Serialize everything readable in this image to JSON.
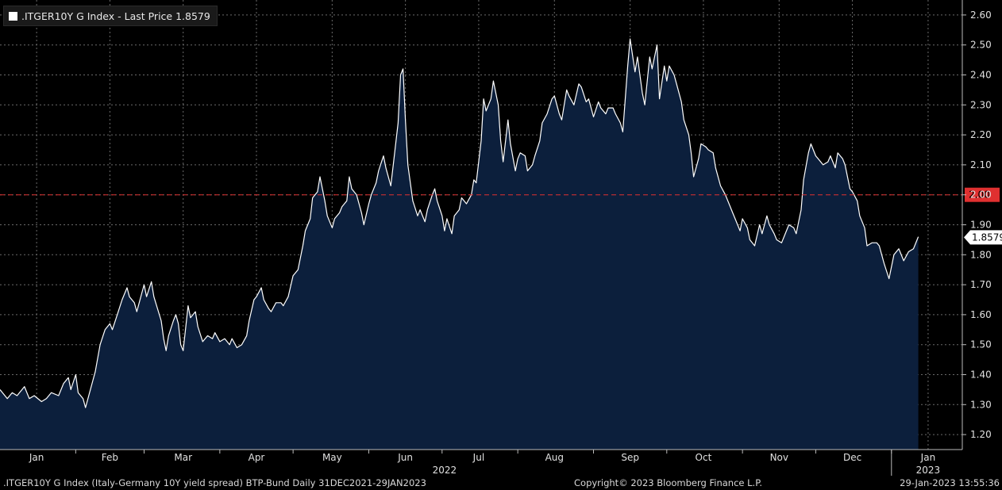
{
  "legend": {
    "label": ".ITGER10Y G Index - Last Price 1.8579",
    "swatch_color": "#ffffff"
  },
  "footer": {
    "left": ".ITGER10Y G Index (Italy-Germany 10Y yield spread) BTP-Bund  Daily 31DEC2021-29JAN2023",
    "center": "Copyright© 2023 Bloomberg Finance L.P.",
    "right": "29-Jan-2023 13:55:36"
  },
  "colors": {
    "background": "#000000",
    "line": "#ffffff",
    "fill": "#0c1f3c",
    "grid": "#6a6a6a",
    "reference": "#e03030",
    "last_price_tag": "#ffffff",
    "reference_tag": "#e03030"
  },
  "chart_data": {
    "type": "area",
    "title": ".ITGER10Y G Index - Last Price 1.8579",
    "xlabel": "",
    "ylabel": "",
    "ylim": [
      1.15,
      2.65
    ],
    "yticks": [
      "1.20",
      "1.30",
      "1.40",
      "1.50",
      "1.60",
      "1.70",
      "1.80",
      "1.90",
      "2.00",
      "2.10",
      "2.20",
      "2.30",
      "2.40",
      "2.50",
      "2.60"
    ],
    "xlim": [
      "2021-12-31",
      "2023-01-29"
    ],
    "x_ticks": [
      {
        "label": "Jan",
        "date": "2022-01-15"
      },
      {
        "label": "Feb",
        "date": "2022-02-14"
      },
      {
        "label": "Mar",
        "date": "2022-03-16"
      },
      {
        "label": "Apr",
        "date": "2022-04-15"
      },
      {
        "label": "May",
        "date": "2022-05-16"
      },
      {
        "label": "Jun",
        "date": "2022-06-15"
      },
      {
        "label": "Jul",
        "date": "2022-07-15"
      },
      {
        "label": "Aug",
        "date": "2022-08-15"
      },
      {
        "label": "Sep",
        "date": "2022-09-15"
      },
      {
        "label": "Oct",
        "date": "2022-10-15"
      },
      {
        "label": "Nov",
        "date": "2022-11-15"
      },
      {
        "label": "Dec",
        "date": "2022-12-15"
      },
      {
        "label": "Jan",
        "date": "2023-01-15"
      }
    ],
    "year_labels": [
      {
        "label": "2022",
        "date": "2022-07-01"
      },
      {
        "label": "2023",
        "date": "2023-01-15"
      }
    ],
    "year_divider": "2022-12-31",
    "month_separators": [
      "2022-01-31",
      "2022-02-28",
      "2022-03-31",
      "2022-04-30",
      "2022-05-31",
      "2022-06-30",
      "2022-07-31",
      "2022-08-31",
      "2022-09-30",
      "2022-10-31",
      "2022-11-30",
      "2022-12-31"
    ],
    "gridlines": true,
    "reference_line": {
      "value": 2.0,
      "label": "2.00"
    },
    "last_price": {
      "value": 1.8579,
      "label": "1.8579"
    },
    "series": [
      {
        "points": [
          [
            "2021-12-31",
            1.35
          ],
          [
            "2022-01-03",
            1.32
          ],
          [
            "2022-01-05",
            1.34
          ],
          [
            "2022-01-07",
            1.33
          ],
          [
            "2022-01-10",
            1.36
          ],
          [
            "2022-01-12",
            1.32
          ],
          [
            "2022-01-14",
            1.33
          ],
          [
            "2022-01-17",
            1.31
          ],
          [
            "2022-01-19",
            1.32
          ],
          [
            "2022-01-21",
            1.34
          ],
          [
            "2022-01-24",
            1.33
          ],
          [
            "2022-01-26",
            1.37
          ],
          [
            "2022-01-28",
            1.39
          ],
          [
            "2022-01-29",
            1.35
          ],
          [
            "2022-01-31",
            1.4
          ],
          [
            "2022-02-01",
            1.34
          ],
          [
            "2022-02-03",
            1.32
          ],
          [
            "2022-02-04",
            1.29
          ],
          [
            "2022-02-07",
            1.38
          ],
          [
            "2022-02-08",
            1.41
          ],
          [
            "2022-02-10",
            1.5
          ],
          [
            "2022-02-12",
            1.55
          ],
          [
            "2022-02-14",
            1.57
          ],
          [
            "2022-02-15",
            1.55
          ],
          [
            "2022-02-17",
            1.6
          ],
          [
            "2022-02-19",
            1.65
          ],
          [
            "2022-02-21",
            1.69
          ],
          [
            "2022-02-22",
            1.66
          ],
          [
            "2022-02-24",
            1.64
          ],
          [
            "2022-02-25",
            1.61
          ],
          [
            "2022-02-27",
            1.67
          ],
          [
            "2022-02-28",
            1.7
          ],
          [
            "2022-03-01",
            1.66
          ],
          [
            "2022-03-03",
            1.71
          ],
          [
            "2022-03-04",
            1.66
          ],
          [
            "2022-03-07",
            1.58
          ],
          [
            "2022-03-08",
            1.52
          ],
          [
            "2022-03-09",
            1.48
          ],
          [
            "2022-03-10",
            1.53
          ],
          [
            "2022-03-12",
            1.58
          ],
          [
            "2022-03-13",
            1.6
          ],
          [
            "2022-03-14",
            1.57
          ],
          [
            "2022-03-15",
            1.5
          ],
          [
            "2022-03-16",
            1.48
          ],
          [
            "2022-03-18",
            1.63
          ],
          [
            "2022-03-19",
            1.59
          ],
          [
            "2022-03-21",
            1.61
          ],
          [
            "2022-03-22",
            1.56
          ],
          [
            "2022-03-24",
            1.51
          ],
          [
            "2022-03-26",
            1.53
          ],
          [
            "2022-03-28",
            1.52
          ],
          [
            "2022-03-29",
            1.54
          ],
          [
            "2022-03-31",
            1.51
          ],
          [
            "2022-04-02",
            1.52
          ],
          [
            "2022-04-04",
            1.5
          ],
          [
            "2022-04-05",
            1.52
          ],
          [
            "2022-04-07",
            1.49
          ],
          [
            "2022-04-09",
            1.5
          ],
          [
            "2022-04-11",
            1.53
          ],
          [
            "2022-04-12",
            1.58
          ],
          [
            "2022-04-14",
            1.65
          ],
          [
            "2022-04-15",
            1.66
          ],
          [
            "2022-04-17",
            1.69
          ],
          [
            "2022-04-18",
            1.65
          ],
          [
            "2022-04-20",
            1.62
          ],
          [
            "2022-04-21",
            1.61
          ],
          [
            "2022-04-23",
            1.64
          ],
          [
            "2022-04-25",
            1.64
          ],
          [
            "2022-04-26",
            1.63
          ],
          [
            "2022-04-28",
            1.66
          ],
          [
            "2022-04-30",
            1.73
          ],
          [
            "2022-05-02",
            1.75
          ],
          [
            "2022-05-04",
            1.83
          ],
          [
            "2022-05-05",
            1.88
          ],
          [
            "2022-05-07",
            1.92
          ],
          [
            "2022-05-08",
            1.99
          ],
          [
            "2022-05-10",
            2.01
          ],
          [
            "2022-05-11",
            2.06
          ],
          [
            "2022-05-13",
            1.98
          ],
          [
            "2022-05-14",
            1.93
          ],
          [
            "2022-05-16",
            1.89
          ],
          [
            "2022-05-17",
            1.92
          ],
          [
            "2022-05-19",
            1.94
          ],
          [
            "2022-05-20",
            1.96
          ],
          [
            "2022-05-22",
            1.98
          ],
          [
            "2022-05-23",
            2.06
          ],
          [
            "2022-05-24",
            2.02
          ],
          [
            "2022-05-26",
            2.0
          ],
          [
            "2022-05-28",
            1.94
          ],
          [
            "2022-05-29",
            1.9
          ],
          [
            "2022-05-31",
            1.97
          ],
          [
            "2022-06-01",
            2.0
          ],
          [
            "2022-06-03",
            2.04
          ],
          [
            "2022-06-04",
            2.08
          ],
          [
            "2022-06-06",
            2.13
          ],
          [
            "2022-06-07",
            2.09
          ],
          [
            "2022-06-09",
            2.03
          ],
          [
            "2022-06-10",
            2.1
          ],
          [
            "2022-06-12",
            2.24
          ],
          [
            "2022-06-13",
            2.4
          ],
          [
            "2022-06-14",
            2.42
          ],
          [
            "2022-06-15",
            2.25
          ],
          [
            "2022-06-16",
            2.1
          ],
          [
            "2022-06-18",
            1.98
          ],
          [
            "2022-06-20",
            1.93
          ],
          [
            "2022-06-21",
            1.95
          ],
          [
            "2022-06-23",
            1.91
          ],
          [
            "2022-06-24",
            1.95
          ],
          [
            "2022-06-26",
            2.0
          ],
          [
            "2022-06-27",
            2.02
          ],
          [
            "2022-06-28",
            1.98
          ],
          [
            "2022-06-30",
            1.93
          ],
          [
            "2022-07-01",
            1.88
          ],
          [
            "2022-07-02",
            1.92
          ],
          [
            "2022-07-04",
            1.87
          ],
          [
            "2022-07-05",
            1.93
          ],
          [
            "2022-07-07",
            1.95
          ],
          [
            "2022-07-08",
            1.99
          ],
          [
            "2022-07-10",
            1.97
          ],
          [
            "2022-07-12",
            2.0
          ],
          [
            "2022-07-13",
            2.05
          ],
          [
            "2022-07-14",
            2.04
          ],
          [
            "2022-07-16",
            2.18
          ],
          [
            "2022-07-17",
            2.32
          ],
          [
            "2022-07-18",
            2.28
          ],
          [
            "2022-07-20",
            2.32
          ],
          [
            "2022-07-21",
            2.38
          ],
          [
            "2022-07-23",
            2.3
          ],
          [
            "2022-07-24",
            2.18
          ],
          [
            "2022-07-25",
            2.11
          ],
          [
            "2022-07-27",
            2.25
          ],
          [
            "2022-07-28",
            2.17
          ],
          [
            "2022-07-30",
            2.08
          ],
          [
            "2022-07-31",
            2.12
          ],
          [
            "2022-08-01",
            2.14
          ],
          [
            "2022-08-03",
            2.13
          ],
          [
            "2022-08-04",
            2.08
          ],
          [
            "2022-08-06",
            2.1
          ],
          [
            "2022-08-07",
            2.13
          ],
          [
            "2022-08-09",
            2.18
          ],
          [
            "2022-08-10",
            2.24
          ],
          [
            "2022-08-12",
            2.27
          ],
          [
            "2022-08-14",
            2.32
          ],
          [
            "2022-08-15",
            2.33
          ],
          [
            "2022-08-17",
            2.27
          ],
          [
            "2022-08-18",
            2.25
          ],
          [
            "2022-08-20",
            2.35
          ],
          [
            "2022-08-21",
            2.33
          ],
          [
            "2022-08-23",
            2.3
          ],
          [
            "2022-08-25",
            2.37
          ],
          [
            "2022-08-26",
            2.36
          ],
          [
            "2022-08-28",
            2.31
          ],
          [
            "2022-08-29",
            2.32
          ],
          [
            "2022-08-31",
            2.26
          ],
          [
            "2022-09-02",
            2.31
          ],
          [
            "2022-09-03",
            2.29
          ],
          [
            "2022-09-05",
            2.27
          ],
          [
            "2022-09-06",
            2.29
          ],
          [
            "2022-09-08",
            2.29
          ],
          [
            "2022-09-09",
            2.27
          ],
          [
            "2022-09-11",
            2.24
          ],
          [
            "2022-09-12",
            2.21
          ],
          [
            "2022-09-14",
            2.43
          ],
          [
            "2022-09-15",
            2.52
          ],
          [
            "2022-09-17",
            2.41
          ],
          [
            "2022-09-18",
            2.46
          ],
          [
            "2022-09-20",
            2.34
          ],
          [
            "2022-09-21",
            2.3
          ],
          [
            "2022-09-23",
            2.46
          ],
          [
            "2022-09-24",
            2.42
          ],
          [
            "2022-09-26",
            2.5
          ],
          [
            "2022-09-27",
            2.32
          ],
          [
            "2022-09-29",
            2.43
          ],
          [
            "2022-09-30",
            2.38
          ],
          [
            "2022-10-01",
            2.43
          ],
          [
            "2022-10-03",
            2.4
          ],
          [
            "2022-10-04",
            2.37
          ],
          [
            "2022-10-06",
            2.31
          ],
          [
            "2022-10-07",
            2.25
          ],
          [
            "2022-10-09",
            2.2
          ],
          [
            "2022-10-10",
            2.14
          ],
          [
            "2022-10-11",
            2.06
          ],
          [
            "2022-10-13",
            2.12
          ],
          [
            "2022-10-14",
            2.17
          ],
          [
            "2022-10-16",
            2.16
          ],
          [
            "2022-10-17",
            2.15
          ],
          [
            "2022-10-19",
            2.14
          ],
          [
            "2022-10-20",
            2.09
          ],
          [
            "2022-10-22",
            2.03
          ],
          [
            "2022-10-24",
            2.0
          ],
          [
            "2022-10-25",
            1.98
          ],
          [
            "2022-10-27",
            1.94
          ],
          [
            "2022-10-28",
            1.92
          ],
          [
            "2022-10-30",
            1.88
          ],
          [
            "2022-10-31",
            1.92
          ],
          [
            "2022-11-02",
            1.89
          ],
          [
            "2022-11-03",
            1.85
          ],
          [
            "2022-11-05",
            1.83
          ],
          [
            "2022-11-07",
            1.9
          ],
          [
            "2022-11-08",
            1.87
          ],
          [
            "2022-11-10",
            1.93
          ],
          [
            "2022-11-11",
            1.9
          ],
          [
            "2022-11-13",
            1.87
          ],
          [
            "2022-11-14",
            1.85
          ],
          [
            "2022-11-16",
            1.84
          ],
          [
            "2022-11-18",
            1.88
          ],
          [
            "2022-11-19",
            1.9
          ],
          [
            "2022-11-21",
            1.89
          ],
          [
            "2022-11-22",
            1.87
          ],
          [
            "2022-11-24",
            1.95
          ],
          [
            "2022-11-25",
            2.05
          ],
          [
            "2022-11-27",
            2.14
          ],
          [
            "2022-11-28",
            2.17
          ],
          [
            "2022-11-30",
            2.13
          ],
          [
            "2022-12-01",
            2.12
          ],
          [
            "2022-12-03",
            2.1
          ],
          [
            "2022-12-05",
            2.11
          ],
          [
            "2022-12-06",
            2.13
          ],
          [
            "2022-12-08",
            2.09
          ],
          [
            "2022-12-09",
            2.14
          ],
          [
            "2022-12-11",
            2.12
          ],
          [
            "2022-12-12",
            2.1
          ],
          [
            "2022-12-14",
            2.02
          ],
          [
            "2022-12-15",
            2.01
          ],
          [
            "2022-12-17",
            1.98
          ],
          [
            "2022-12-18",
            1.93
          ],
          [
            "2022-12-20",
            1.89
          ],
          [
            "2022-12-21",
            1.83
          ],
          [
            "2022-12-23",
            1.84
          ],
          [
            "2022-12-25",
            1.84
          ],
          [
            "2022-12-26",
            1.83
          ],
          [
            "2022-12-28",
            1.77
          ],
          [
            "2022-12-30",
            1.72
          ],
          [
            "2023-01-01",
            1.8
          ],
          [
            "2023-01-03",
            1.82
          ],
          [
            "2023-01-05",
            1.78
          ],
          [
            "2023-01-07",
            1.81
          ],
          [
            "2023-01-09",
            1.82
          ],
          [
            "2023-01-11",
            1.86
          ]
        ]
      }
    ]
  }
}
